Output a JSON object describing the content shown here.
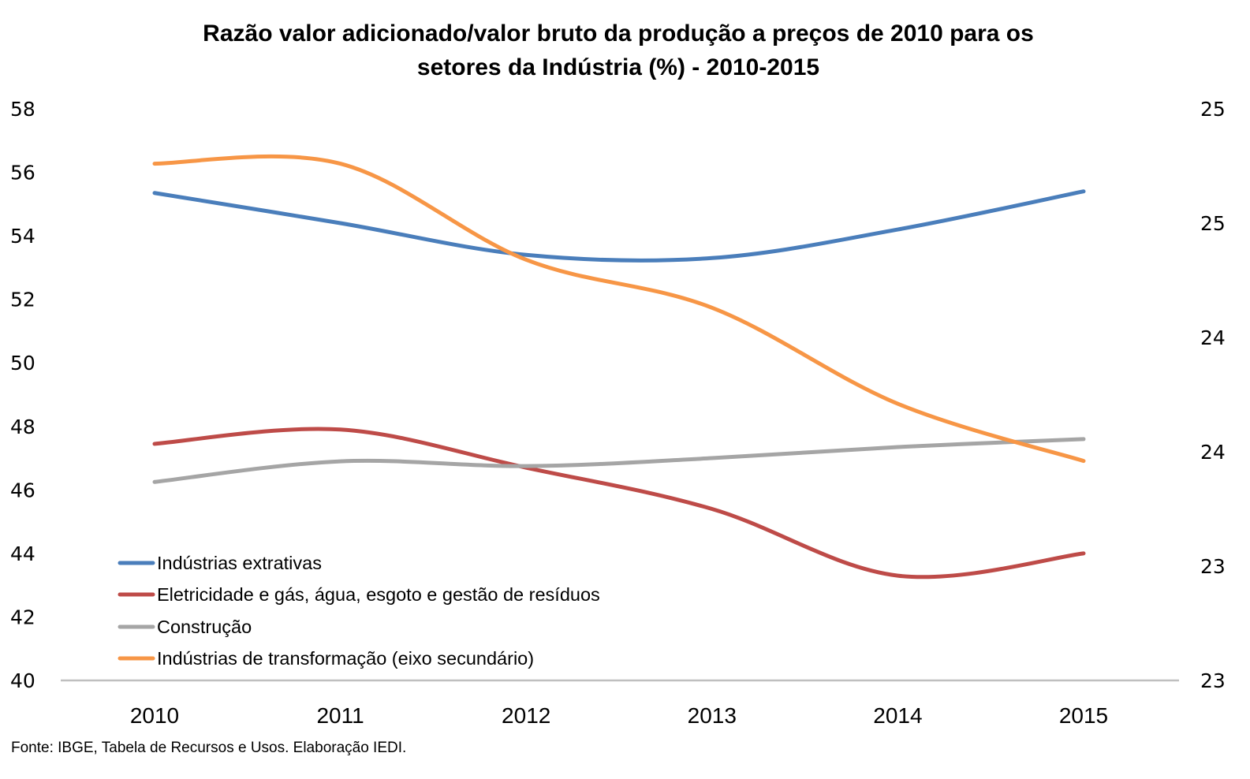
{
  "chart_data": {
    "type": "line",
    "title_lines": [
      "Razão valor adicionado/valor bruto da produção a preços de 2010 para os",
      "setores da Indústria (%) - 2010-2015"
    ],
    "x": [
      "2010",
      "2011",
      "2012",
      "2013",
      "2014",
      "2015"
    ],
    "xlabel": "",
    "ylabel": "",
    "y_axis": {
      "min": 40,
      "max": 58,
      "step": 2,
      "tick_labels": [
        "58",
        "56",
        "54",
        "52",
        "50",
        "48",
        "46",
        "44",
        "42",
        "40"
      ]
    },
    "y2_axis": {
      "min": 23,
      "max": 25.5,
      "step": 0.5,
      "tick_labels": [
        "25",
        "25",
        "24",
        "24",
        "23",
        "23"
      ]
    },
    "grid": false,
    "smooth": true,
    "legend_position": "bottom-left inside",
    "series": [
      {
        "name": "Indústrias extrativas",
        "axis": "primary",
        "color": "#4A7EBB",
        "values": [
          55.35,
          54.4,
          53.4,
          53.3,
          54.2,
          55.4
        ]
      },
      {
        "name": "Eletricidade e gás, água, esgoto e gestão de resíduos",
        "axis": "primary",
        "color": "#BE4B48",
        "values": [
          47.45,
          47.9,
          46.7,
          45.4,
          43.3,
          44.0
        ]
      },
      {
        "name": "Construção",
        "axis": "primary",
        "color": "#A5A5A5",
        "values": [
          46.25,
          46.9,
          46.75,
          47.0,
          47.35,
          47.6
        ]
      },
      {
        "name": "Indústrias de transformação (eixo secundário)",
        "axis": "secondary",
        "color": "#F79646",
        "values": [
          25.26,
          25.26,
          24.84,
          24.63,
          24.21,
          23.96
        ]
      }
    ],
    "source_note": "Fonte: IBGE, Tabela de Recursos e Usos. Elaboração IEDI."
  }
}
